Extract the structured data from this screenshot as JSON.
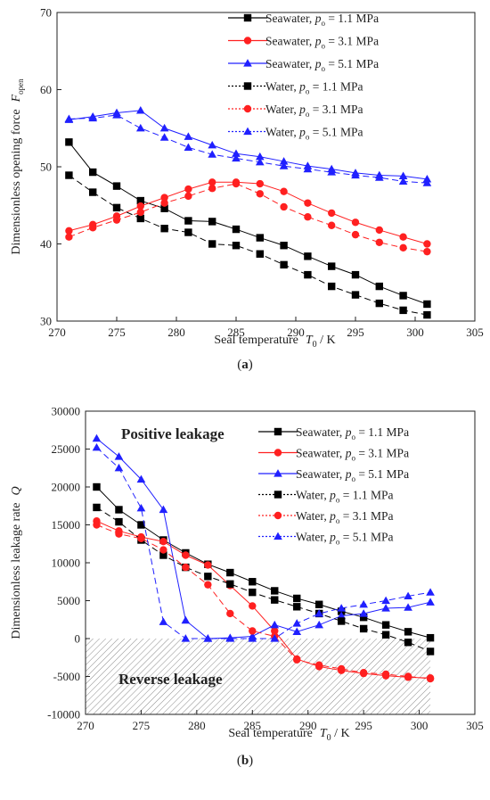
{
  "chart_data": [
    {
      "type": "line",
      "panel_label": "(a)",
      "xlabel": "Seal temperature",
      "xlabel_symbol": "T",
      "xlabel_sub": "0",
      "xlabel_unit": " / K",
      "ylabel": "Dimensionless opening force",
      "ylabel_symbol": "F",
      "ylabel_sub": "open",
      "xlim": [
        270,
        305
      ],
      "ylim": [
        30,
        70
      ],
      "xticks": [
        "270",
        "275",
        "280",
        "285",
        "290",
        "295",
        "300",
        "305"
      ],
      "yticks": [
        "30",
        "40",
        "50",
        "60",
        "70"
      ],
      "legend_position": "top-right",
      "series": [
        {
          "name": "Seawater, ",
          "p_sym": "p",
          "p_sub": "o",
          "p_val": " = 1.1 MPa",
          "color": "#000000",
          "marker": "square",
          "dash": "solid",
          "x": [
            271,
            273,
            275,
            277,
            279,
            281,
            283,
            285,
            287,
            289,
            291,
            293,
            295,
            297,
            299,
            301
          ],
          "y": [
            53.2,
            49.3,
            47.5,
            45.6,
            44.6,
            43.0,
            42.9,
            41.9,
            40.8,
            39.8,
            38.4,
            37.1,
            36.0,
            34.5,
            33.3,
            32.2
          ]
        },
        {
          "name": "Seawater, ",
          "p_sym": "p",
          "p_sub": "o",
          "p_val": " = 3.1 MPa",
          "color": "#ff2020",
          "marker": "circle",
          "dash": "solid",
          "x": [
            271,
            273,
            275,
            277,
            279,
            281,
            283,
            285,
            287,
            289,
            291,
            293,
            295,
            297,
            299,
            301
          ],
          "y": [
            41.7,
            42.5,
            43.6,
            44.9,
            46.0,
            47.1,
            48.0,
            48.0,
            47.8,
            46.8,
            45.3,
            44.0,
            42.8,
            41.8,
            40.9,
            40.0
          ]
        },
        {
          "name": "Seawater, ",
          "p_sym": "p",
          "p_sub": "o",
          "p_val": " = 5.1 MPa",
          "color": "#2020ff",
          "marker": "triangle",
          "dash": "solid",
          "x": [
            271,
            273,
            275,
            277,
            279,
            281,
            283,
            285,
            287,
            289,
            291,
            293,
            295,
            297,
            299,
            301
          ],
          "y": [
            56.1,
            56.5,
            57.0,
            57.3,
            55.0,
            53.9,
            52.8,
            51.7,
            51.3,
            50.7,
            50.1,
            49.7,
            49.2,
            48.9,
            48.8,
            48.4
          ]
        },
        {
          "name": "Water, ",
          "p_sym": "p",
          "p_sub": "o",
          "p_val": " = 1.1 MPa",
          "color": "#000000",
          "marker": "square",
          "dash": "dashed",
          "x": [
            271,
            273,
            275,
            277,
            279,
            281,
            283,
            285,
            287,
            289,
            291,
            293,
            295,
            297,
            299,
            301
          ],
          "y": [
            48.9,
            46.7,
            44.7,
            43.3,
            42.0,
            41.5,
            40.0,
            39.8,
            38.7,
            37.3,
            36.0,
            34.5,
            33.4,
            32.3,
            31.4,
            30.8
          ]
        },
        {
          "name": "Water, ",
          "p_sym": "p",
          "p_sub": "o",
          "p_val": " = 3.1 MPa",
          "color": "#ff2020",
          "marker": "circle",
          "dash": "dashed",
          "x": [
            271,
            273,
            275,
            277,
            279,
            281,
            283,
            285,
            287,
            289,
            291,
            293,
            295,
            297,
            299,
            301
          ],
          "y": [
            40.9,
            42.1,
            43.1,
            44.1,
            45.3,
            46.2,
            47.2,
            47.8,
            46.5,
            44.8,
            43.5,
            42.4,
            41.2,
            40.2,
            39.5,
            39.0
          ]
        },
        {
          "name": "Water, ",
          "p_sym": "p",
          "p_sub": "o",
          "p_val": " = 5.1 MPa",
          "color": "#2020ff",
          "marker": "triangle",
          "dash": "dashed",
          "x": [
            271,
            273,
            275,
            277,
            279,
            281,
            283,
            285,
            287,
            289,
            291,
            293,
            295,
            297,
            299,
            301
          ],
          "y": [
            56.2,
            56.3,
            56.7,
            55.0,
            53.8,
            52.5,
            51.6,
            51.1,
            50.6,
            50.1,
            49.7,
            49.3,
            48.9,
            48.6,
            48.1,
            47.9
          ]
        }
      ]
    },
    {
      "type": "line",
      "panel_label": "(b)",
      "xlabel": "Seal temperature",
      "xlabel_symbol": "T",
      "xlabel_sub": "0",
      "xlabel_unit": " / K",
      "ylabel": "Dimensionless leakage rate",
      "ylabel_symbol": "Q",
      "xlim": [
        270,
        305
      ],
      "ylim": [
        -10000,
        30000
      ],
      "xticks": [
        "270",
        "275",
        "280",
        "285",
        "290",
        "295",
        "300",
        "305"
      ],
      "yticks": [
        "-10000",
        "-5000",
        "0",
        "5000",
        "10000",
        "15000",
        "20000",
        "25000",
        "30000"
      ],
      "legend_position": "top-right",
      "annotations": [
        "Positive leakage",
        "Reverse leakage"
      ],
      "annotation_color": "#4a4ab8",
      "series": [
        {
          "name": "Seawater, ",
          "p_sym": "p",
          "p_sub": "o",
          "p_val": " = 1.1 MPa",
          "color": "#000000",
          "marker": "square",
          "dash": "solid",
          "x": [
            271,
            273,
            275,
            277,
            279,
            281,
            283,
            285,
            287,
            289,
            291,
            293,
            295,
            297,
            299,
            301
          ],
          "y": [
            20000,
            17000,
            15000,
            13000,
            11300,
            9800,
            8700,
            7500,
            6300,
            5300,
            4500,
            3600,
            2800,
            1800,
            900,
            100
          ]
        },
        {
          "name": "Seawater, ",
          "p_sym": "p",
          "p_sub": "o",
          "p_val": " = 3.1 MPa",
          "color": "#ff2020",
          "marker": "circle",
          "dash": "solid",
          "x": [
            271,
            273,
            275,
            277,
            279,
            281,
            283,
            285,
            287,
            289,
            291,
            293,
            295,
            297,
            299,
            301
          ],
          "y": [
            15500,
            14200,
            13400,
            12800,
            11000,
            9700,
            7000,
            4300,
            1000,
            -2700,
            -3700,
            -4200,
            -4600,
            -4900,
            -5100,
            -5200
          ]
        },
        {
          "name": "Seawater, ",
          "p_sym": "p",
          "p_sub": "o",
          "p_val": " = 5.1 MPa",
          "color": "#2020ff",
          "marker": "triangle",
          "dash": "solid",
          "x": [
            271,
            273,
            275,
            277,
            279,
            281,
            283,
            285,
            287,
            289,
            291,
            293,
            295,
            297,
            299,
            301
          ],
          "y": [
            26400,
            24000,
            21000,
            17000,
            2400,
            0,
            100,
            300,
            1800,
            900,
            1800,
            3000,
            3300,
            4000,
            4100,
            4800
          ]
        },
        {
          "name": "Water, ",
          "p_sym": "p",
          "p_sub": "o",
          "p_val": " = 1.1 MPa",
          "color": "#000000",
          "marker": "square",
          "dash": "dashed",
          "x": [
            271,
            273,
            275,
            277,
            279,
            281,
            283,
            285,
            287,
            289,
            291,
            293,
            295,
            297,
            299,
            301
          ],
          "y": [
            17300,
            15400,
            13000,
            11000,
            9400,
            8200,
            7200,
            6100,
            5100,
            4200,
            3300,
            2300,
            1300,
            500,
            -500,
            -1700
          ]
        },
        {
          "name": "Water, ",
          "p_sym": "p",
          "p_sub": "o",
          "p_val": " = 3.1 MPa",
          "color": "#ff2020",
          "marker": "circle",
          "dash": "dashed",
          "x": [
            271,
            273,
            275,
            277,
            279,
            281,
            283,
            285,
            287,
            289,
            291,
            293,
            295,
            297,
            299,
            301
          ],
          "y": [
            15000,
            13800,
            13200,
            11700,
            9400,
            7100,
            3300,
            1000,
            300,
            -2800,
            -3500,
            -4000,
            -4500,
            -4700,
            -5000,
            -5300
          ]
        },
        {
          "name": "Water, ",
          "p_sym": "p",
          "p_sub": "o",
          "p_val": " = 5.1 MPa",
          "color": "#2020ff",
          "marker": "triangle",
          "dash": "dashed",
          "x": [
            271,
            273,
            275,
            277,
            279,
            281,
            283,
            285,
            287,
            289,
            291,
            293,
            295,
            297,
            299,
            301
          ],
          "y": [
            25200,
            22500,
            17200,
            2200,
            0,
            0,
            0,
            0,
            0,
            2000,
            3300,
            4000,
            4500,
            5000,
            5600,
            6100
          ]
        }
      ]
    }
  ]
}
